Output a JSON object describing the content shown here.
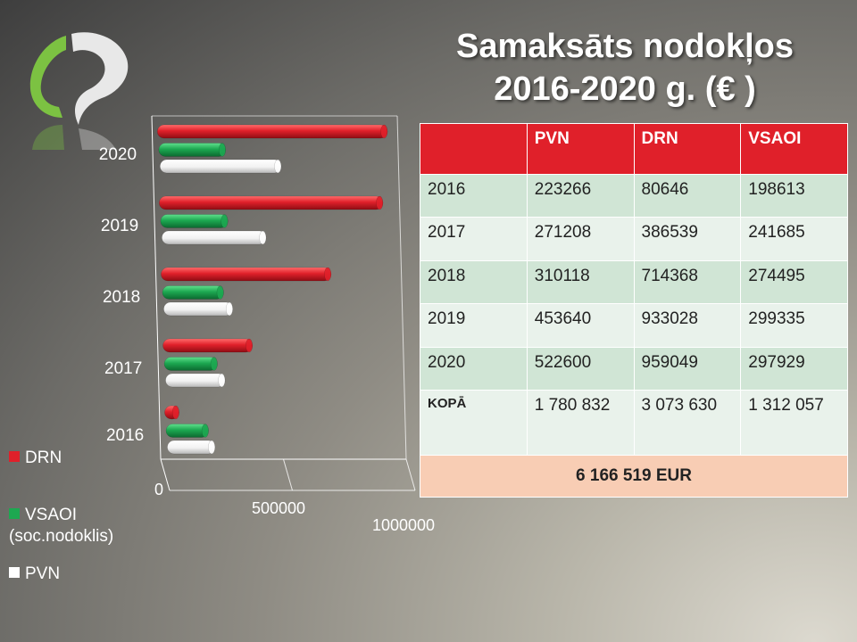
{
  "title_lines": [
    "Samaksāts nodokļos",
    "2016-2020 g. (€ )"
  ],
  "colors": {
    "DRN": "#e0202a",
    "VSAOI": "#1da851",
    "PVN": "#ffffff",
    "table_header": "#e0202a",
    "total_row": "#f8cdb4"
  },
  "chart_data": {
    "type": "bar",
    "orientation": "horizontal",
    "categories": [
      "2016",
      "2017",
      "2018",
      "2019",
      "2020"
    ],
    "series": [
      {
        "name": "DRN",
        "values": [
          80646,
          386539,
          714368,
          933028,
          959049
        ]
      },
      {
        "name": "VSAOI\n(soc.nodoklis)",
        "values": [
          198613,
          241685,
          274495,
          299335,
          297929
        ]
      },
      {
        "name": "PVN",
        "values": [
          223266,
          271208,
          310118,
          453640,
          522600
        ]
      }
    ],
    "xlim": [
      0,
      1000000
    ],
    "xticks": [
      "0",
      "500000",
      "1000000"
    ],
    "legend_position": "bottom-left"
  },
  "legend": [
    {
      "label": "DRN",
      "color": "#e0202a"
    },
    {
      "label": "VSAOI\n(soc.nodoklis)",
      "color": "#1da851"
    },
    {
      "label": "PVN",
      "color": "#ffffff"
    }
  ],
  "table": {
    "headers": [
      "",
      "PVN",
      "DRN",
      "VSAOI"
    ],
    "rows": [
      [
        "2016",
        "223266",
        "80646",
        "198613"
      ],
      [
        "2017",
        "271208",
        "386539",
        "241685"
      ],
      [
        "2018",
        "310118",
        "714368",
        "274495"
      ],
      [
        "2019",
        "453640",
        "933028",
        "299335"
      ],
      [
        "2020",
        "522600",
        "959049",
        "297929"
      ]
    ],
    "total_row": [
      "KOPĀ",
      "1 780 832",
      "3 073 630",
      "1 312 057"
    ],
    "grand_total": "6 166 519 EUR"
  }
}
